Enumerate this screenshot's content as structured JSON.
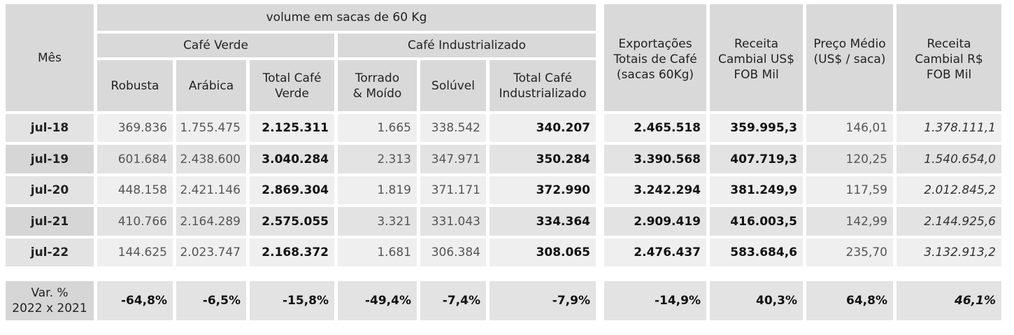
{
  "headers": {
    "mes": "Mês",
    "volume": "volume em sacas de 60 Kg",
    "cafe_verde": "Café Verde",
    "cafe_industrializado": "Café Industrializado",
    "robusta": "Robusta",
    "arabica": "Arábica",
    "total_verde": "Total Café Verde",
    "torrado": "Torrado & Moído",
    "soluvel": "Solúvel",
    "total_industrializado": "Total Café Industrializado",
    "exportacoes": "Exportações Totais de Café (sacas 60Kg)",
    "receita_usd": "Receita Cambial US$ FOB Mil",
    "preco_medio": "Preço Médio (US$ / saca)",
    "receita_brl": "Receita Cambial R$ FOB Mil"
  },
  "rows": [
    {
      "mes": "jul-18",
      "robusta": "369.836",
      "arabica": "1.755.475",
      "total_verde": "2.125.311",
      "torrado": "1.665",
      "soluvel": "338.542",
      "total_ind": "340.207",
      "exportacoes": "2.465.518",
      "receita_usd": "359.995,3",
      "preco": "146,01",
      "receita_brl": "1.378.111,1"
    },
    {
      "mes": "jul-19",
      "robusta": "601.684",
      "arabica": "2.438.600",
      "total_verde": "3.040.284",
      "torrado": "2.313",
      "soluvel": "347.971",
      "total_ind": "350.284",
      "exportacoes": "3.390.568",
      "receita_usd": "407.719,3",
      "preco": "120,25",
      "receita_brl": "1.540.654,0"
    },
    {
      "mes": "jul-20",
      "robusta": "448.158",
      "arabica": "2.421.146",
      "total_verde": "2.869.304",
      "torrado": "1.819",
      "soluvel": "371.171",
      "total_ind": "372.990",
      "exportacoes": "3.242.294",
      "receita_usd": "381.249,9",
      "preco": "117,59",
      "receita_brl": "2.012.845,2"
    },
    {
      "mes": "jul-21",
      "robusta": "410.766",
      "arabica": "2.164.289",
      "total_verde": "2.575.055",
      "torrado": "3.321",
      "soluvel": "331.043",
      "total_ind": "334.364",
      "exportacoes": "2.909.419",
      "receita_usd": "416.003,5",
      "preco": "142,99",
      "receita_brl": "2.144.925,6"
    },
    {
      "mes": "jul-22",
      "robusta": "144.625",
      "arabica": "2.023.747",
      "total_verde": "2.168.372",
      "torrado": "1.681",
      "soluvel": "306.384",
      "total_ind": "308.065",
      "exportacoes": "2.476.437",
      "receita_usd": "583.684,6",
      "preco": "235,70",
      "receita_brl": "3.132.913,2"
    }
  ],
  "variation": {
    "label_line1": "Var. %",
    "label_line2": "2022 x 2021",
    "robusta": "-64,8%",
    "arabica": "-6,5%",
    "total_verde": "-15,8%",
    "torrado": "-49,4%",
    "soluvel": "-7,4%",
    "total_ind": "-7,9%",
    "exportacoes": "-14,9%",
    "receita_usd": "40,3%",
    "preco": "64,8%",
    "receita_brl": "46,1%"
  }
}
